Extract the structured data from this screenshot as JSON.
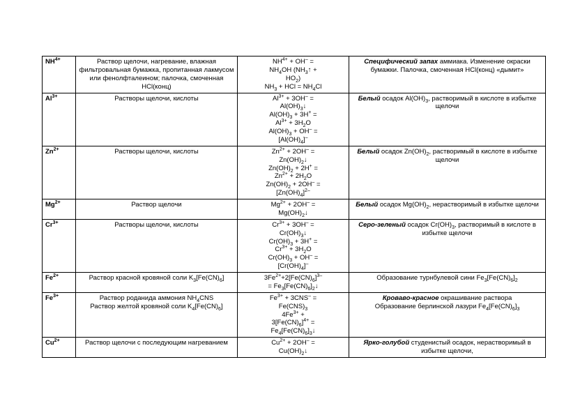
{
  "rows": [
    {
      "ion": "NH<sup>4+</sup>",
      "reagent": "Раствор щелочи, нагревание, влажная фильтровальная бумажка, пропитанная лакмусом или фенолфталеином; палочка, смоченная HCl(конц)",
      "equation": "NH<sup>4+</sup> + OH<sup>–</sup> =<br>NH<sub>4</sub>OH (NH<sub>3</sub>↑ +<br>HO<sub>2</sub>)<br>NH<sub>3</sub> + HCl = NH<sub>4</sub>Cl",
      "effect": "<span class='bi'>Специфический запах</span> аммиака. Изменение окраски бумажки. Палочка, смоченная HCl(конц) «дымит»"
    },
    {
      "ion": "Al<sup>3+</sup>",
      "reagent": "Растворы щелочи, кислоты",
      "equation": "Al<sup>3+</sup> + 3OH<sup>–</sup> =<br>Al(OH)<sub>3</sub>↓<br>Al(OH)<sub>3</sub> + 3H<sup>+</sup> =<br>Al<sup>3+</sup> + 3H<sub>2</sub>O<br>Al(OH)<sub>3</sub> + OH<sup>–</sup> =<br>[Al(OH)<sub>4</sub>]<sup>–</sup>",
      "effect": "<span class='bi'>Белый</span> осадок Al(OH)<sub>3</sub>, растворимый в кислоте в избытке щелочи"
    },
    {
      "ion": "Zn<sup>2+</sup>",
      "reagent": "Растворы щелочи, кислоты",
      "equation": "Zn<sup>2+</sup> + 2OH<sup>–</sup> =<br>Zn(OH)<sub>2</sub>↓<br>Zn(OH)<sub>2</sub> + 2H<sup>+</sup> =<br>Zn<sup>2+</sup> + 2H<sub>2</sub>O<br>Zn(OH)<sub>2</sub> + 2OH<sup>–</sup> =<br>[Zn(OH)<sub>4</sub>]<sup>2–</sup>",
      "effect": "<span class='bi'>Белый</span> осадок Zn(OH)<sub>2</sub>, растворимый в кислоте в избытке щелочи"
    },
    {
      "ion": "Mg<sup>2+</sup>",
      "reagent": "Раствор щелочи",
      "equation": "Mg<sup>2+</sup> + 2OH<sup>–</sup> =<br>Mg(OH)<sub>2</sub>↓",
      "effect": "<span class='bi'>Белый</span> осадок Mg(OH)<sub>2</sub>, нерастворимый в избытке щелочи"
    },
    {
      "ion": "Cr<sup>3+</sup>",
      "reagent": "Растворы щелочи, кислоты",
      "equation": "Cr<sup>3+</sup> + 3OH<sup>–</sup> =<br>Cr(OH)<sub>3</sub>↓<br>Cr(OH)<sub>3</sub> + 3H<sup>+</sup> =<br>Cr<sup>3+</sup> + 3H<sub>2</sub>O<br>Cr(OH)<sub>3</sub> + OH<sup>–</sup> =<br>[Cr(OH)<sub>4</sub>]<sup>–</sup>",
      "effect": "<span class='bi'>Серо-зеленый</span> осадок Cr(OH)<sub>3</sub>, растворимый в кислоте в избытке щелочи"
    },
    {
      "ion": "Fe<sup>2+</sup>",
      "reagent": "Раствор красной кровяной соли K<sub>3</sub>[Fe(CN)<sub>6</sub>]",
      "equation": "3Fe<sup>2+</sup>+2[Fe(CN)<sub>6</sub>]<sup>3–</sup><br>= Fe<sub>3</sub>[Fe(CN)<sub>6</sub>]<sub>2</sub>↓",
      "effect": "Образование турнбулевой сини Fe<sub>3</sub>[Fe(CN)<sub>6</sub>]<sub>2</sub>"
    },
    {
      "ion": "Fe<sup>3+</sup>",
      "reagent": "Раствор роданида аммония NH<sub>4</sub>CNS<br>Раствор желтой кровяной соли K<sub>4</sub>[Fe(CN)<sub>6</sub>]",
      "equation": "Fe<sup>3+</sup> + 3CNS<sup>–</sup> =<br>Fe(CNS)<sub>3</sub><br>4Fe<sup>3+</sup> +<br>3[Fe(CN)<sub>6</sub>]<sup>4+</sup> =<br>Fe<sub>4</sub>[Fe(CN)<sub>6</sub>]<sub>3</sub>↓",
      "effect": "<span class='bi'>Кроваво-красное</span> окрашивание раствора<br>Образование берлинской лазури Fe<sub>4</sub>[Fe(CN)<sub>6</sub>]<sub>3</sub>"
    },
    {
      "ion": "Cu<sup>2+</sup>",
      "reagent": "Раствор щелочи с последующим нагреванием",
      "equation": "Cu<sup>2+</sup> + 2OH<sup>–</sup> =<br>Cu(OH)<sub>2</sub>↓",
      "effect": "<span class='bi'>Ярко-голубой</span> студенистый осадок, нерастворимый в избытке щелочи,"
    }
  ]
}
